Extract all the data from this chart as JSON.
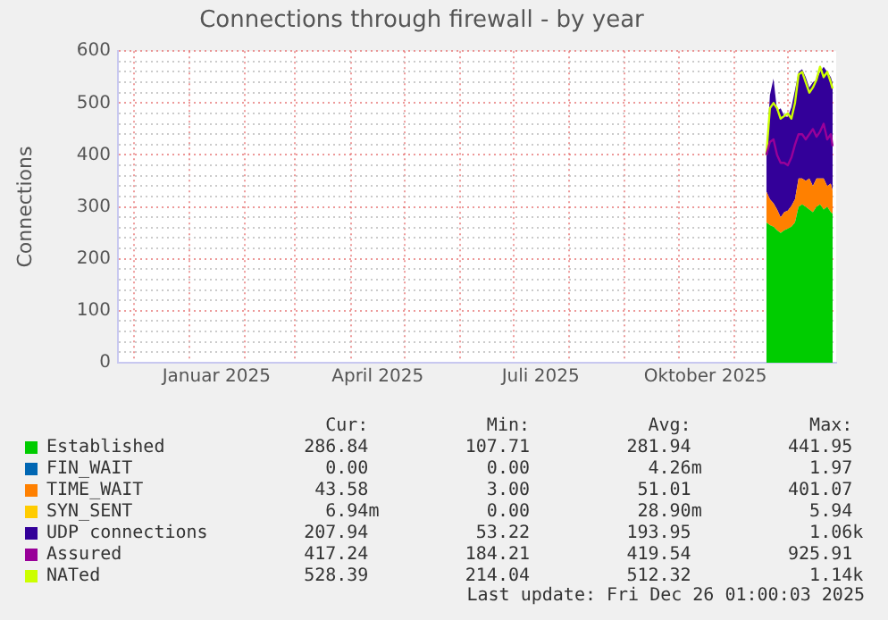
{
  "chart_data": {
    "type": "area",
    "title": "Connections through firewall - by year",
    "ylabel": "Connections",
    "stacked": true,
    "legend": "bottom",
    "marker": "none",
    "grid": true,
    "x": [
      "2025-11-19",
      "2025-11-21",
      "2025-11-23",
      "2025-11-25",
      "2025-11-27",
      "2025-11-29",
      "2025-12-01",
      "2025-12-03",
      "2025-12-05",
      "2025-12-07",
      "2025-12-09",
      "2025-12-11",
      "2025-12-13",
      "2025-12-15",
      "2025-12-17",
      "2025-12-19",
      "2025-12-21",
      "2025-12-23",
      "2025-12-25",
      "2025-12-26"
    ],
    "xlim": [
      "2024-11-22",
      "2025-12-28"
    ],
    "xticks": [
      {
        "value": "2024-12-01",
        "label": null
      },
      {
        "value": "2025-01-01",
        "label": null
      },
      {
        "value": "2025-02-01",
        "label": null
      },
      {
        "value": "2025-03-01",
        "label": null
      },
      {
        "value": "2025-04-01",
        "label": null
      },
      {
        "value": "2025-05-01",
        "label": null
      },
      {
        "value": "2025-06-01",
        "label": null
      },
      {
        "value": "2025-07-01",
        "label": null
      },
      {
        "value": "2025-08-01",
        "label": null
      },
      {
        "value": "2025-09-01",
        "label": null
      },
      {
        "value": "2025-10-01",
        "label": null
      },
      {
        "value": "2025-11-01",
        "label": null
      },
      {
        "value": "2025-12-01",
        "label": null
      },
      {
        "value": "2025-01-16",
        "label": "Januar 2025"
      },
      {
        "value": "2025-04-16",
        "label": "April 2025"
      },
      {
        "value": "2025-07-16",
        "label": "Juli 2025"
      },
      {
        "value": "2025-10-16",
        "label": "Oktober 2025"
      }
    ],
    "ylim": [
      0,
      600
    ],
    "yticks": [
      0,
      100,
      200,
      300,
      400,
      500,
      600,
      {
        "value": 20,
        "label": null
      },
      {
        "value": 40,
        "label": null
      },
      {
        "value": 60,
        "label": null
      },
      {
        "value": 80,
        "label": null
      },
      {
        "value": 120,
        "label": null
      },
      {
        "value": 140,
        "label": null
      },
      {
        "value": 160,
        "label": null
      },
      {
        "value": 180,
        "label": null
      },
      {
        "value": 220,
        "label": null
      },
      {
        "value": 240,
        "label": null
      },
      {
        "value": 260,
        "label": null
      },
      {
        "value": 280,
        "label": null
      },
      {
        "value": 320,
        "label": null
      },
      {
        "value": 340,
        "label": null
      },
      {
        "value": 360,
        "label": null
      },
      {
        "value": 380,
        "label": null
      },
      {
        "value": 420,
        "label": null
      },
      {
        "value": 440,
        "label": null
      },
      {
        "value": 460,
        "label": null
      },
      {
        "value": 480,
        "label": null
      },
      {
        "value": 520,
        "label": null
      },
      {
        "value": 540,
        "label": null
      },
      {
        "value": 560,
        "label": null
      },
      {
        "value": 580,
        "label": null
      }
    ],
    "series": [
      {
        "name": "Established",
        "color": "#00cc00",
        "values": [
          270,
          265,
          262,
          255,
          250,
          255,
          258,
          262,
          270,
          300,
          305,
          300,
          295,
          290,
          300,
          305,
          295,
          300,
          290,
          287
        ]
      },
      {
        "name": "FIN_WAIT",
        "color": "#0066b3",
        "values": [
          null,
          null,
          null,
          null,
          null,
          null,
          null,
          null,
          null,
          null,
          null,
          null,
          null,
          null,
          null,
          null,
          null,
          null,
          null,
          null
        ]
      },
      {
        "name": "TIME_WAIT",
        "color": "#ff8000",
        "values": [
          60,
          50,
          45,
          40,
          30,
          35,
          35,
          40,
          45,
          55,
          50,
          50,
          60,
          50,
          55,
          50,
          60,
          40,
          55,
          44
        ]
      },
      {
        "name": "SYN_SENT",
        "color": "#ffcc00",
        "values": [
          null,
          null,
          null,
          null,
          null,
          null,
          null,
          null,
          null,
          null,
          null,
          null,
          null,
          null,
          null,
          null,
          null,
          null,
          null,
          null
        ]
      },
      {
        "name": "UDP connections",
        "color": "#330099",
        "values": [
          70,
          200,
          240,
          190,
          210,
          185,
          180,
          190,
          210,
          205,
          210,
          200,
          175,
          200,
          190,
          205,
          215,
          220,
          205,
          208
        ]
      },
      {
        "name": "Assured",
        "type": "line",
        "color": "#990099",
        "values": [
          400,
          425,
          430,
          400,
          385,
          385,
          380,
          395,
          420,
          440,
          440,
          430,
          440,
          450,
          435,
          445,
          460,
          430,
          440,
          417
        ]
      },
      {
        "name": "NATed",
        "type": "line",
        "color": "#ccff00",
        "values": [
          400,
          490,
          500,
          490,
          470,
          475,
          480,
          470,
          500,
          555,
          560,
          540,
          520,
          530,
          545,
          570,
          550,
          560,
          540,
          528
        ]
      }
    ],
    "annotations": [
      "      Cur:           Min:           Avg:           Max:",
      "    286.84         107.71         281.94         441.95",
      "      0.00           0.00           4.26m          1.97",
      "     43.58           3.00          51.01         401.07",
      "      6.94m          0.00          28.90m          5.94",
      "    207.94          53.22         193.95           1.06k",
      "    417.24         184.21         419.54         925.91",
      "    528.39         214.04         512.32           1.14k",
      "Last update: Fri Dec 26 01:00:03 2025"
    ]
  }
}
